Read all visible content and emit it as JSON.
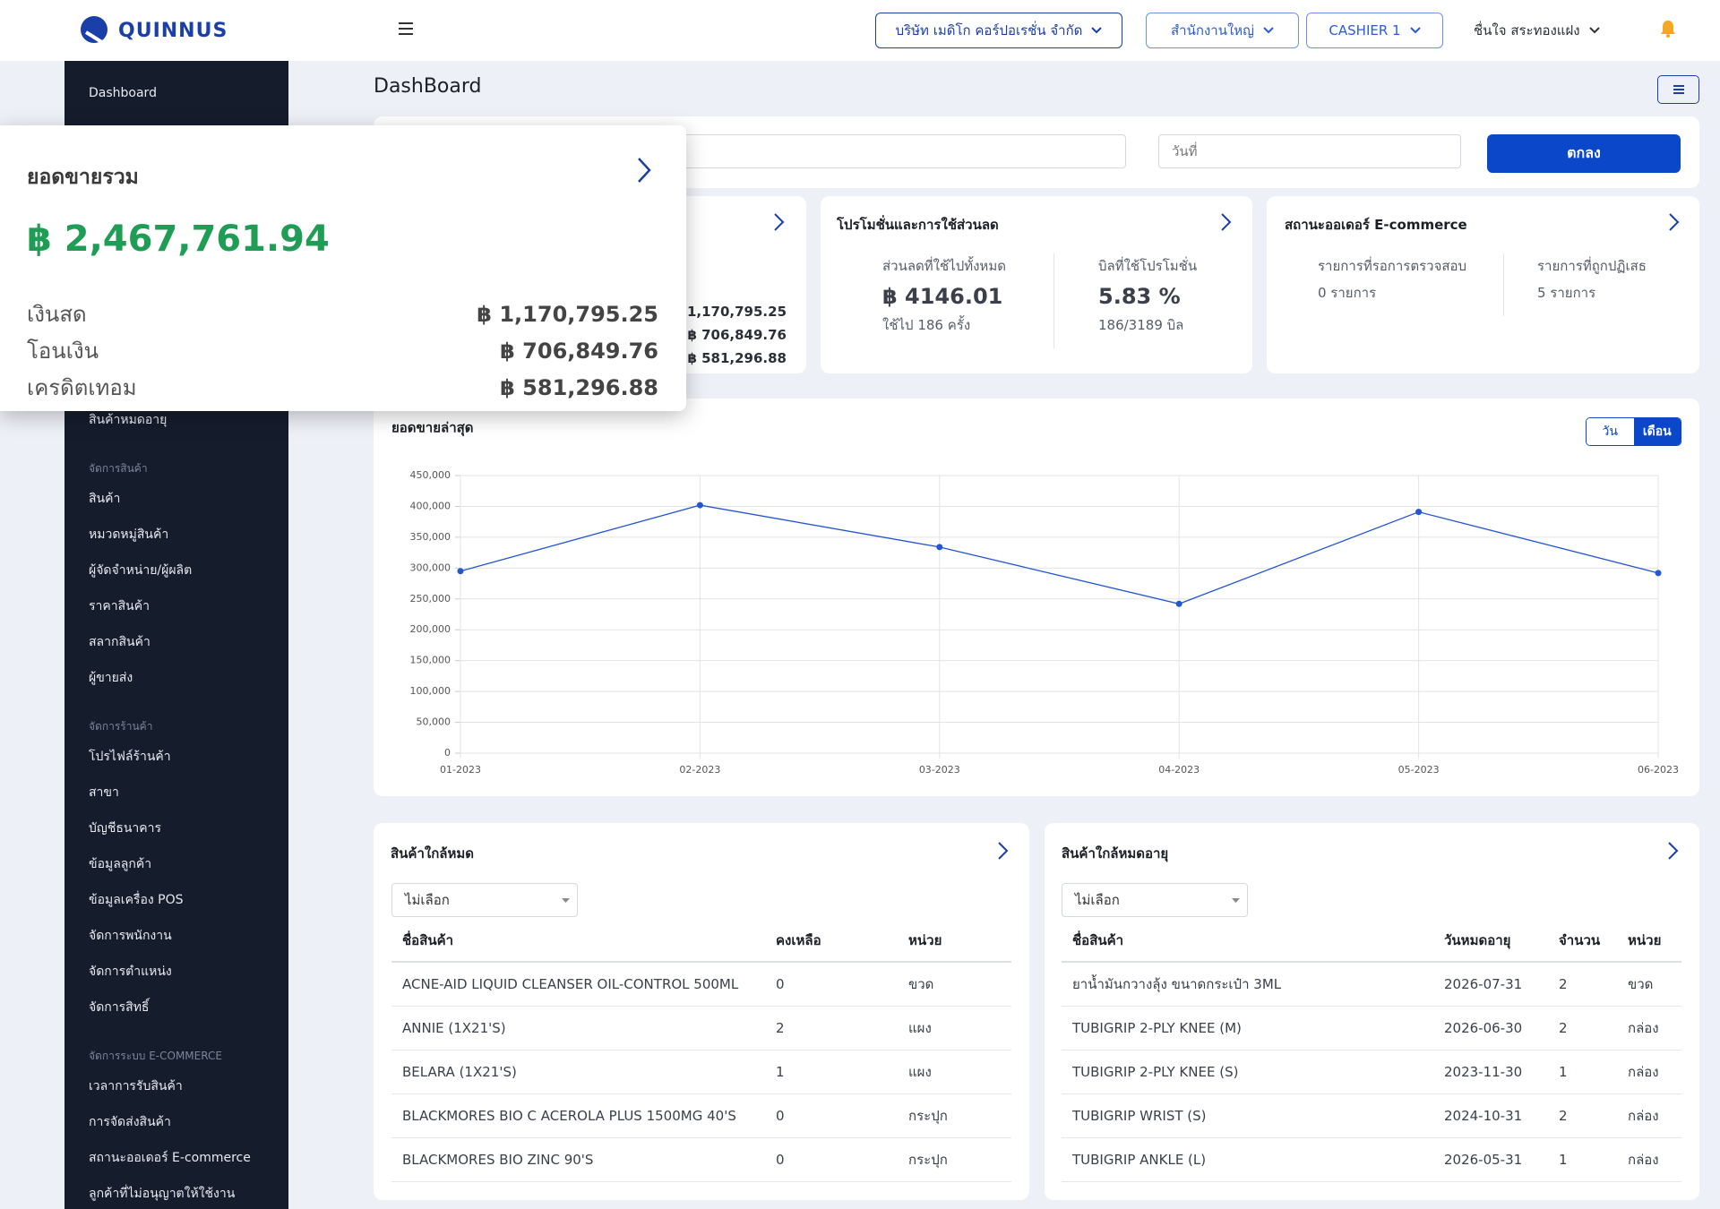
{
  "header": {
    "logo": "QUINNUS",
    "company": "บริษัท เมดิโก คอร์ปอเรชั่น จำกัด",
    "branch": "สำนักงานใหญ่",
    "cashier": "CASHIER 1",
    "user": "ชื่นใจ สระทองแฝง"
  },
  "sidebar": {
    "top_items": [
      "Dashboard"
    ],
    "groups": [
      {
        "items": [
          "สินค้าหมดอายุ"
        ]
      },
      {
        "heading": "จัดการสินค้า",
        "items": [
          "สินค้า",
          "หมวดหมู่สินค้า",
          "ผู้จัดจำหน่าย/ผู้ผลิต",
          "ราคาสินค้า",
          "สลากสินค้า",
          "ผู้ขายส่ง"
        ]
      },
      {
        "heading": "จัดการร้านค้า",
        "items": [
          "โปรไฟล์ร้านค้า",
          "สาขา",
          "บัญชีธนาคาร",
          "ข้อมูลลูกค้า",
          "ข้อมูลเครื่อง POS",
          "จัดการพนักงาน",
          "จัดการตำแหน่ง",
          "จัดการสิทธิ์"
        ]
      },
      {
        "heading": "จัดการระบบ E-COMMERCE",
        "items": [
          "เวลาการรับสินค้า",
          "การจัดส่งสินค้า",
          "สถานะออเดอร์ E-commerce",
          "ลูกค้าที่ไม่อนุญาตให้ใช้งาน"
        ]
      }
    ]
  },
  "page_title": "DashBoard",
  "filter": {
    "date_placeholder": "วันที่",
    "submit": "ตกลง"
  },
  "total_sales_popup": {
    "title": "ยอดขายรวม",
    "total": "฿ 2,467,761.94",
    "rows": [
      {
        "label": "เงินสด",
        "value": "฿ 1,170,795.25"
      },
      {
        "label": "โอนเงิน",
        "value": "฿ 706,849.76"
      },
      {
        "label": "เครดิตเทอม",
        "value": "฿ 581,296.88"
      }
    ]
  },
  "total_sales_card": {
    "values": [
      "฿ 1,170,795.25",
      "฿ 706,849.76",
      "฿ 581,296.88"
    ]
  },
  "promotion_card": {
    "title": "โปรโมชั่นและการใช้ส่วนลด",
    "columns": [
      {
        "label": "ส่วนลดที่ใช้ไปทั้งหมด",
        "value": "฿ 4146.01",
        "note": "ใช้ไป 186 ครั้ง"
      },
      {
        "label": "บิลที่ใช้โปรโมชั่น",
        "value": "5.83 %",
        "note": "186/3189 บิล"
      }
    ]
  },
  "ecommerce_card": {
    "title": "สถานะออเดอร์ E-commerce",
    "columns": [
      {
        "label": "รายการที่รอการตรวจสอบ",
        "note": "0 รายการ"
      },
      {
        "label": "รายการที่ถูกปฏิเสธ",
        "note": "5 รายการ"
      }
    ]
  },
  "chart_card": {
    "toggle": [
      "วัน",
      "เดือน"
    ]
  },
  "chart_data": {
    "type": "line",
    "title": "ยอดขายล่าสุด",
    "categories": [
      "01-2023",
      "02-2023",
      "03-2023",
      "04-2023",
      "05-2023",
      "06-2023"
    ],
    "series": [
      {
        "name": "ยอดขาย",
        "color": "#2456d3",
        "values": [
          295000,
          402000,
          334000,
          242000,
          391000,
          292000
        ]
      }
    ],
    "ylim": [
      0,
      450000
    ],
    "yticks": [
      0,
      {
        "value": 50000,
        "label": "50,000"
      },
      {
        "value": 100000,
        "label": "100,000"
      },
      {
        "value": 150000,
        "label": "150,000"
      },
      {
        "value": 200000,
        "label": "200,000"
      },
      {
        "value": 250000,
        "label": "250,000"
      },
      {
        "value": 300000,
        "label": "300,000"
      },
      {
        "value": 350000,
        "label": "350,000"
      },
      {
        "value": 400000,
        "label": "400,000"
      },
      {
        "value": 450000,
        "label": "450,000"
      }
    ],
    "grid": true
  },
  "low_stock": {
    "title": "สินค้าใกล้หมด",
    "select": "ไม่เลือก",
    "columns": [
      "ชื่อสินค้า",
      "คงเหลือ",
      "หน่วย"
    ],
    "rows": [
      [
        "ACNE-AID LIQUID CLEANSER OIL-CONTROL 500ML",
        0,
        "ขวด"
      ],
      [
        "ANNIE (1X21'S)",
        2,
        "แผง"
      ],
      [
        "BELARA (1X21'S)",
        1,
        "แผง"
      ],
      [
        "BLACKMORES BIO C ACEROLA PLUS 1500MG 40'S",
        0,
        "กระปุก"
      ],
      [
        "BLACKMORES BIO ZINC 90'S",
        0,
        "กระปุก"
      ]
    ]
  },
  "expiring": {
    "title": "สินค้าใกล้หมดอายุ",
    "select": "ไม่เลือก",
    "columns": [
      "ชื่อสินค้า",
      "วันหมดอายุ",
      "จำนวน",
      "หน่วย"
    ],
    "rows": [
      [
        "ยาน้ำมันกวางลุ้ง ขนาดกระเป๋า 3ML",
        "2026-07-31",
        2,
        "ขวด"
      ],
      [
        "TUBIGRIP 2-PLY KNEE (M)",
        "2026-06-30",
        2,
        "กล่อง"
      ],
      [
        "TUBIGRIP 2-PLY KNEE (S)",
        "2023-11-30",
        1,
        "กล่อง"
      ],
      [
        "TUBIGRIP WRIST (S)",
        "2024-10-31",
        2,
        "กล่อง"
      ],
      [
        "TUBIGRIP ANKLE (L)",
        "2026-05-31",
        1,
        "กล่อง"
      ]
    ]
  }
}
